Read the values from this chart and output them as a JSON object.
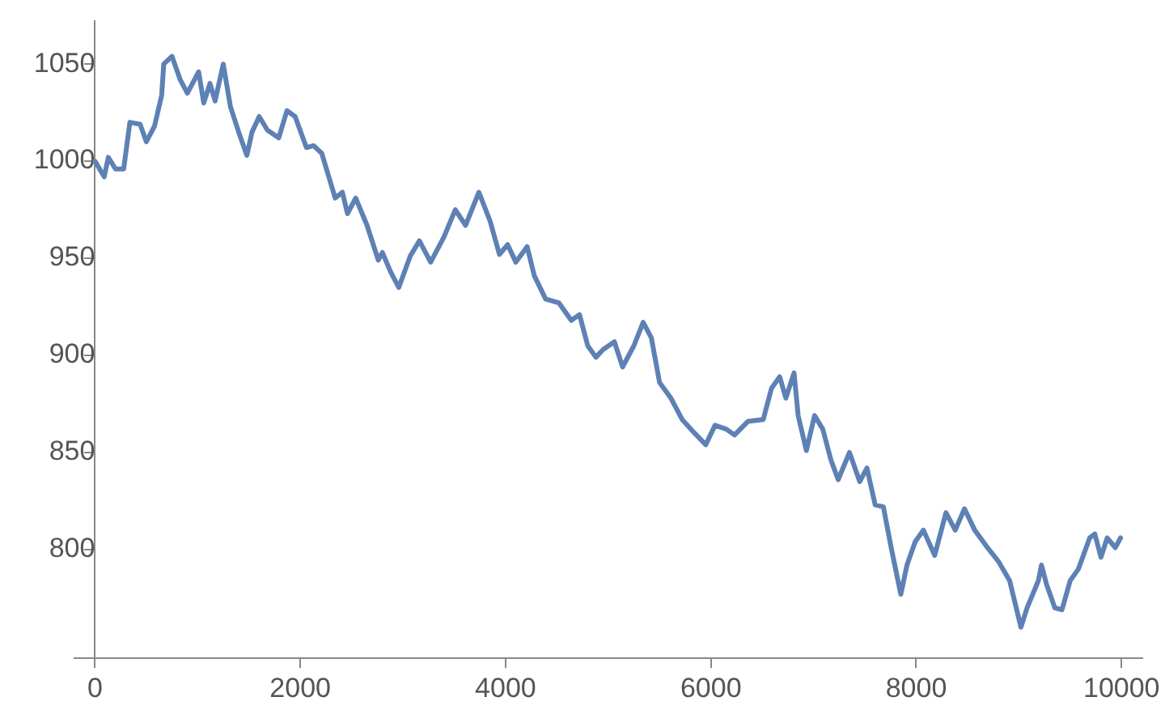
{
  "chart_data": {
    "type": "line",
    "x": [
      0,
      90,
      130,
      200,
      280,
      340,
      440,
      500,
      580,
      650,
      670,
      750,
      830,
      900,
      1010,
      1060,
      1120,
      1170,
      1250,
      1320,
      1400,
      1480,
      1530,
      1600,
      1680,
      1790,
      1870,
      1950,
      2060,
      2130,
      2210,
      2340,
      2410,
      2460,
      2540,
      2650,
      2760,
      2800,
      2880,
      2960,
      3070,
      3160,
      3270,
      3400,
      3510,
      3610,
      3740,
      3850,
      3940,
      4020,
      4100,
      4210,
      4280,
      4390,
      4520,
      4640,
      4720,
      4800,
      4880,
      4950,
      5060,
      5140,
      5250,
      5340,
      5420,
      5500,
      5610,
      5720,
      5840,
      5950,
      6040,
      6150,
      6230,
      6360,
      6510,
      6590,
      6670,
      6730,
      6810,
      6850,
      6930,
      7010,
      7090,
      7170,
      7240,
      7350,
      7450,
      7520,
      7600,
      7680,
      7760,
      7850,
      7910,
      7990,
      8070,
      8180,
      8290,
      8380,
      8470,
      8570,
      8680,
      8800,
      8910,
      9020,
      9080,
      9190,
      9220,
      9270,
      9350,
      9420,
      9500,
      9580,
      9690,
      9740,
      9800,
      9860,
      9940,
      9990
    ],
    "series": [
      {
        "color": "#5e81b5",
        "values": [
          1000,
          992,
          1002,
          996,
          996,
          1020,
          1019,
          1010,
          1018,
          1034,
          1050,
          1054,
          1042,
          1035,
          1046,
          1030,
          1040,
          1031,
          1050,
          1028,
          1015,
          1003,
          1015,
          1023,
          1016,
          1012,
          1026,
          1023,
          1007,
          1008,
          1004,
          981,
          984,
          973,
          981,
          967,
          949,
          953,
          943,
          935,
          951,
          959,
          948,
          961,
          975,
          967,
          984,
          969,
          952,
          957,
          948,
          956,
          941,
          929,
          927,
          918,
          921,
          905,
          899,
          903,
          907,
          894,
          905,
          917,
          909,
          886,
          878,
          867,
          860,
          854,
          864,
          862,
          859,
          866,
          867,
          883,
          889,
          878,
          891,
          869,
          851,
          869,
          862,
          846,
          836,
          850,
          835,
          842,
          823,
          822,
          800,
          777,
          792,
          804,
          810,
          797,
          819,
          810,
          821,
          810,
          802,
          794,
          784,
          760,
          770,
          784,
          792,
          782,
          770,
          769,
          784,
          790,
          806,
          808,
          796,
          806,
          801,
          806
        ]
      }
    ],
    "xlim": [
      -200,
      10200
    ],
    "ylim": [
      744,
      1072
    ],
    "xticks": [
      0,
      2000,
      4000,
      6000,
      8000,
      10000
    ],
    "yticks": [
      800,
      850,
      900,
      950,
      1000,
      1050
    ],
    "grid": false,
    "legend": false,
    "marker": "none",
    "line_style": "solid"
  }
}
